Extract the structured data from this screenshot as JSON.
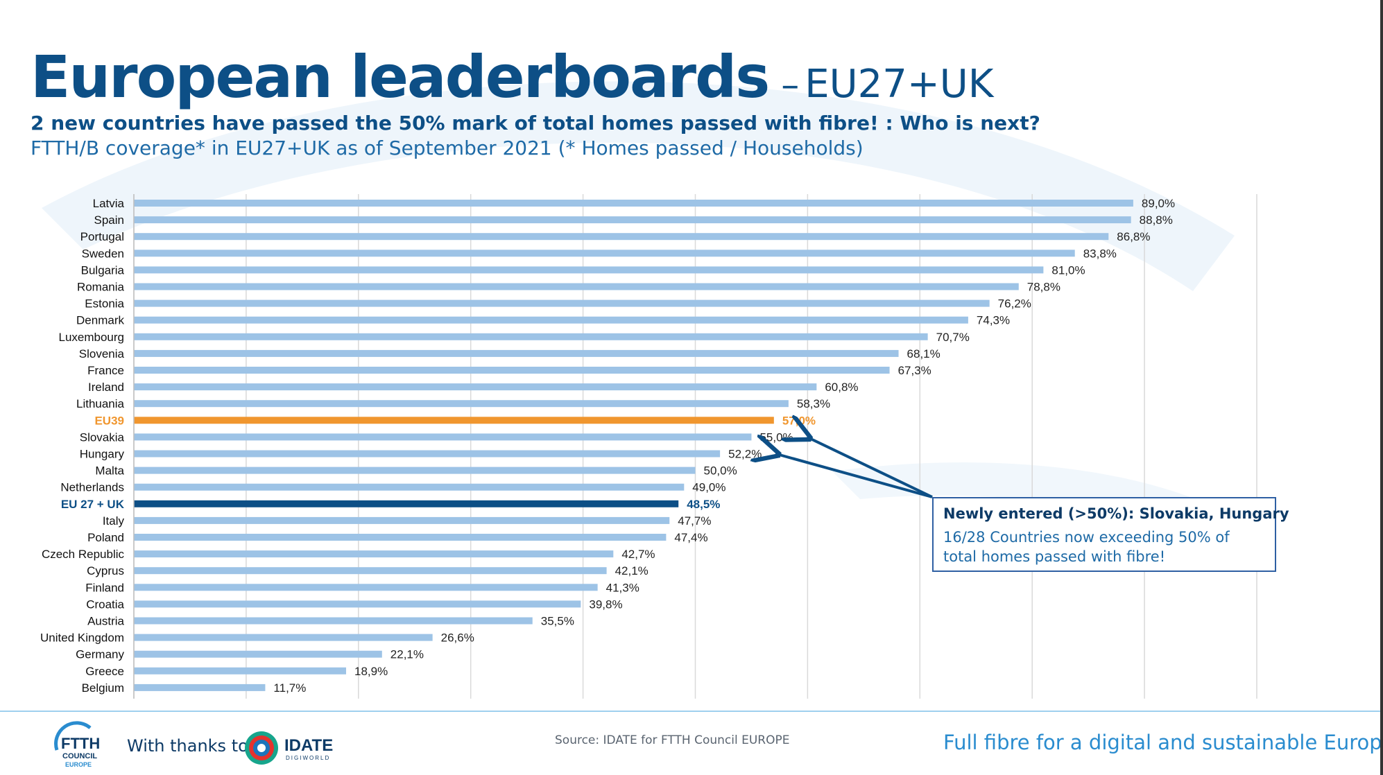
{
  "title": {
    "main": "European leaderboards",
    "separator": "–",
    "sub": "EU27+UK"
  },
  "headline": "2 new countries have passed the 50% mark of total homes passed with fibre! : Who is next?",
  "subheadline": "FTTH/B coverage* in EU27+UK as of September 2021 (* Homes passed / Households)",
  "chart_data": {
    "type": "bar",
    "orientation": "horizontal",
    "categories": [
      "Latvia",
      "Spain",
      "Portugal",
      "Sweden",
      "Bulgaria",
      "Romania",
      "Estonia",
      "Denmark",
      "Luxembourg",
      "Slovenia",
      "France",
      "Ireland",
      "Lithuania",
      "EU39",
      "Slovakia",
      "Hungary",
      "Malta",
      "Netherlands",
      "EU 27 + UK",
      "Italy",
      "Poland",
      "Czech Republic",
      "Cyprus",
      "Finland",
      "Croatia",
      "Austria",
      "United Kingdom",
      "Germany",
      "Greece",
      "Belgium"
    ],
    "values": [
      89.0,
      88.8,
      86.8,
      83.8,
      81.0,
      78.8,
      76.2,
      74.3,
      70.7,
      68.1,
      67.3,
      60.8,
      58.3,
      57.0,
      55.0,
      52.2,
      50.0,
      49.0,
      48.5,
      47.7,
      47.4,
      42.7,
      42.1,
      41.3,
      39.8,
      35.5,
      26.6,
      22.1,
      18.9,
      11.7
    ],
    "labels": [
      "89,0%",
      "88,8%",
      "86,8%",
      "83,8%",
      "81,0%",
      "78,8%",
      "76,2%",
      "74,3%",
      "70,7%",
      "68,1%",
      "67,3%",
      "60,8%",
      "58,3%",
      "57,0%",
      "55,0%",
      "52,2%",
      "50,0%",
      "49,0%",
      "48,5%",
      "47,7%",
      "47,4%",
      "42,7%",
      "42,1%",
      "41,3%",
      "39,8%",
      "35,5%",
      "26,6%",
      "22,1%",
      "18,9%",
      "11,7%"
    ],
    "highlights": {
      "EU39": "#f0962e",
      "EU 27 + UK": "#0d4f86"
    },
    "bar_color": "#9dc3e6",
    "xlim": [
      0,
      100
    ],
    "grid": true
  },
  "callout": {
    "title": "Newly entered (>50%): Slovakia, Hungary",
    "body": "16/28 Countries now exceeding 50% of total homes passed with fibre!",
    "arrow_targets": [
      "Slovakia",
      "Hungary"
    ]
  },
  "footer": {
    "ftth_logo": {
      "line1": "FTTH",
      "line2": "COUNCIL",
      "line3": "EUROPE"
    },
    "thanks": "With thanks to",
    "idate_logo": {
      "name": "IDATE",
      "sub": "DIGIWORLD"
    },
    "source": "Source: IDATE for FTTH Council EUROPE",
    "tagline": "Full fibre for a digital and sustainable Europe"
  },
  "colors": {
    "brand_dark": "#0d4f86",
    "brand_light": "#2a8ccf",
    "eu39": "#f0962e"
  }
}
